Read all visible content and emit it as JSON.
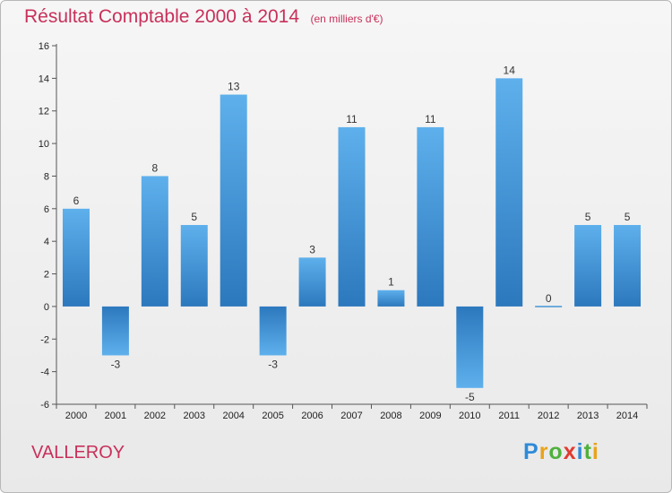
{
  "chart_data": {
    "type": "bar",
    "title": "Résultat Comptable 2000 à 2014",
    "subtitle": "(en milliers d'€)",
    "categories": [
      "2000",
      "2001",
      "2002",
      "2003",
      "2004",
      "2005",
      "2006",
      "2007",
      "2008",
      "2009",
      "2010",
      "2011",
      "2012",
      "2013",
      "2014"
    ],
    "values": [
      6,
      -3,
      8,
      5,
      13,
      -3,
      3,
      11,
      1,
      11,
      -5,
      14,
      0,
      5,
      5
    ],
    "yticks": [
      -6,
      -4,
      -2,
      0,
      2,
      4,
      6,
      8,
      10,
      12,
      14,
      16
    ],
    "ylim": [
      -6,
      16
    ],
    "xlabel": "",
    "ylabel": "",
    "grid": false,
    "bar_color": "#3b8fd8"
  },
  "footer": {
    "commune": "VALLEROY",
    "logo_letters": [
      "P",
      "r",
      "o",
      "x",
      "i",
      "t",
      "i"
    ],
    "logo_colors": [
      "#2f8ad8",
      "#e9a21c",
      "#4fb13c",
      "#e03a2f",
      "#2f8ad8",
      "#4fb13c",
      "#e9a21c"
    ]
  }
}
